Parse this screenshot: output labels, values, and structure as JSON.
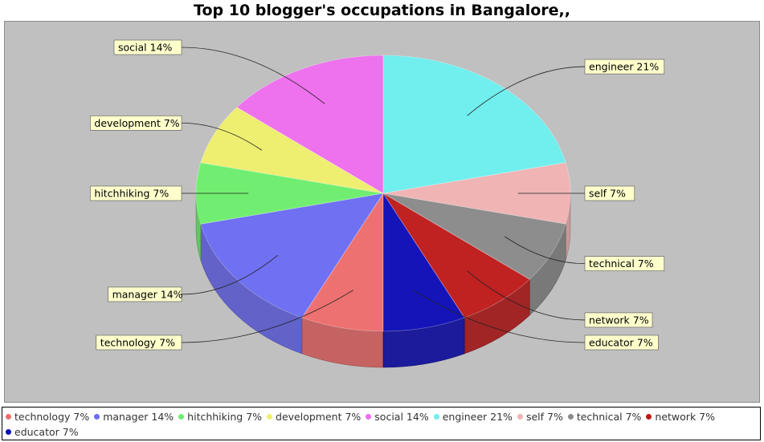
{
  "chart_data": {
    "type": "pie",
    "title": "Top 10 blogger's occupations in Bangalore,,",
    "slices": [
      {
        "label": "technology",
        "percent": 7,
        "color": "#f06d6d"
      },
      {
        "label": "manager",
        "percent": 14,
        "color": "#6b6bf5"
      },
      {
        "label": "hitchhiking",
        "percent": 7,
        "color": "#6df06d"
      },
      {
        "label": "development",
        "percent": 7,
        "color": "#f0f06d"
      },
      {
        "label": "social",
        "percent": 14,
        "color": "#f06df0"
      },
      {
        "label": "engineer",
        "percent": 21,
        "color": "#6df0f0"
      },
      {
        "label": "self",
        "percent": 7,
        "color": "#f2b3b3"
      },
      {
        "label": "technical",
        "percent": 7,
        "color": "#8a8a8a"
      },
      {
        "label": "network",
        "percent": 7,
        "color": "#c01818"
      },
      {
        "label": "educator",
        "percent": 7,
        "color": "#0b0bb8"
      }
    ],
    "slice_labels": [
      "technology 7%",
      "manager 14%",
      "hitchhiking 7%",
      "development 7%",
      "social 14%",
      "engineer 21%",
      "self 7%",
      "technical 7%",
      "network 7%",
      "educator 7%"
    ],
    "legend": {
      "placement": "bottom",
      "entries": [
        "technology 7%",
        "manager 14%",
        "hitchhiking 7%",
        "development 7%",
        "social 14%",
        "engineer 21%",
        "self 7%",
        "technical 7%",
        "network 7%",
        "educator 7%"
      ]
    },
    "background_color": "#c0c0c0",
    "label_box_color": "#ffffcc"
  }
}
